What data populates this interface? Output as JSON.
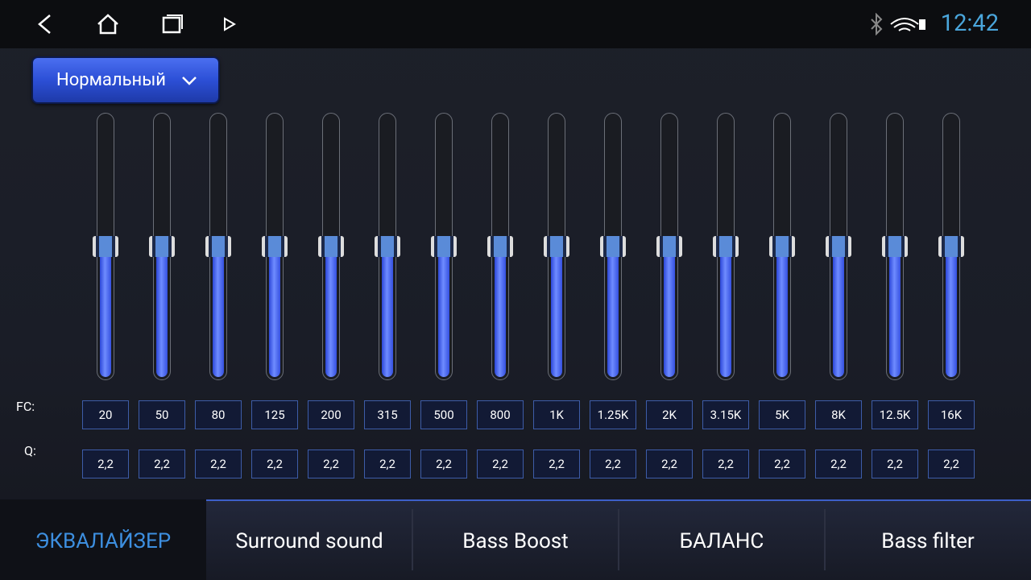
{
  "status_bar": {
    "time": "12:42"
  },
  "preset": {
    "label": "Нормальный"
  },
  "row_labels": {
    "fc": "FC:",
    "q": "Q:"
  },
  "bands": [
    {
      "fc": "20",
      "q": "2,2"
    },
    {
      "fc": "50",
      "q": "2,2"
    },
    {
      "fc": "80",
      "q": "2,2"
    },
    {
      "fc": "125",
      "q": "2,2"
    },
    {
      "fc": "200",
      "q": "2,2"
    },
    {
      "fc": "315",
      "q": "2,2"
    },
    {
      "fc": "500",
      "q": "2,2"
    },
    {
      "fc": "800",
      "q": "2,2"
    },
    {
      "fc": "1K",
      "q": "2,2"
    },
    {
      "fc": "1.25K",
      "q": "2,2"
    },
    {
      "fc": "2K",
      "q": "2,2"
    },
    {
      "fc": "3.15K",
      "q": "2,2"
    },
    {
      "fc": "5K",
      "q": "2,2"
    },
    {
      "fc": "8K",
      "q": "2,2"
    },
    {
      "fc": "12.5K",
      "q": "2,2"
    },
    {
      "fc": "16K",
      "q": "2,2"
    }
  ],
  "tabs": [
    {
      "label": "ЭКВАЛАЙЗЕР",
      "active": true
    },
    {
      "label": "Surround sound",
      "active": false
    },
    {
      "label": "Bass Boost",
      "active": false
    },
    {
      "label": "БАЛАНС",
      "active": false
    },
    {
      "label": "Bass filter",
      "active": false
    }
  ]
}
